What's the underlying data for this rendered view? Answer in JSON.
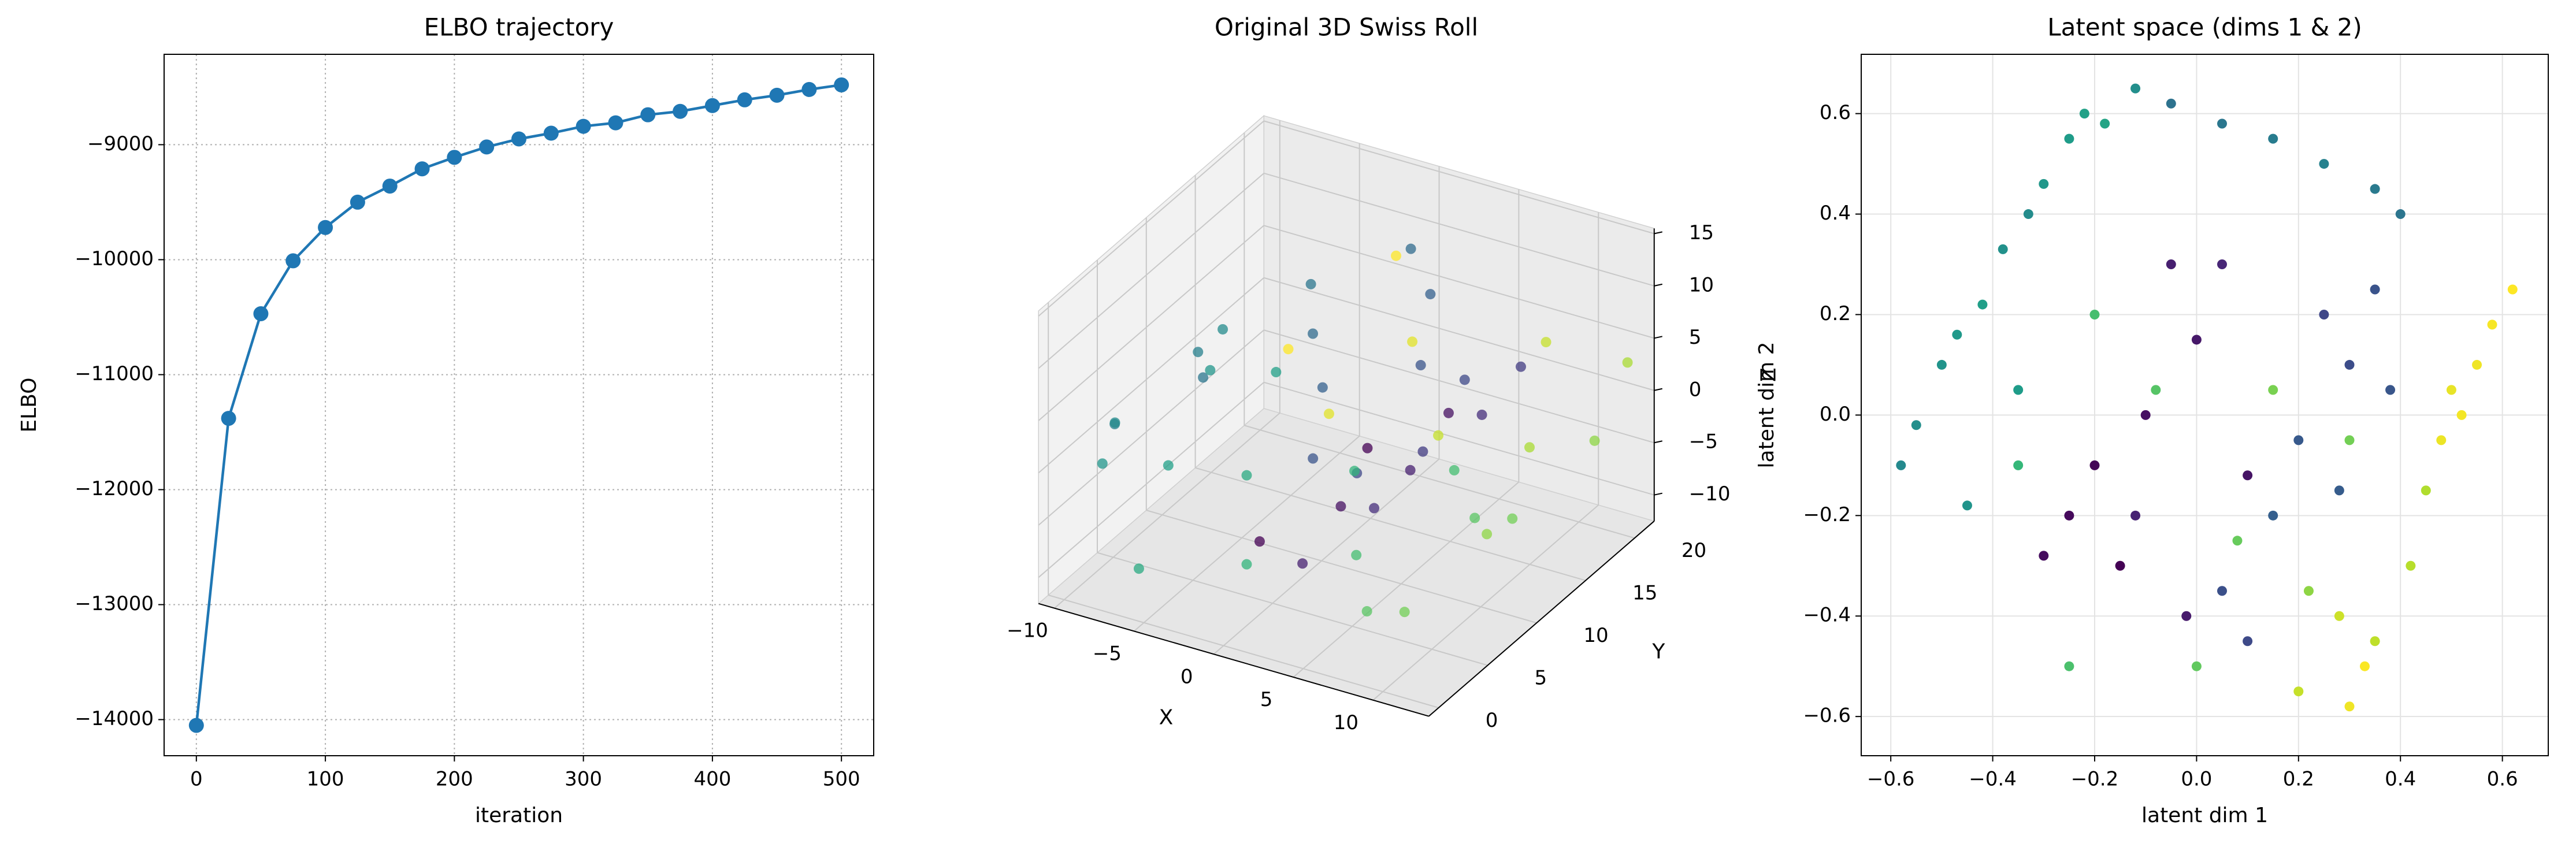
{
  "chart_data": [
    {
      "type": "line",
      "title": "ELBO trajectory",
      "xlabel": "iteration",
      "ylabel": "ELBO",
      "x": [
        0,
        25,
        50,
        75,
        100,
        125,
        150,
        175,
        200,
        225,
        250,
        275,
        300,
        325,
        350,
        375,
        400,
        425,
        450,
        475,
        500
      ],
      "values": [
        -14050,
        -11380,
        -10470,
        -10010,
        -9720,
        -9500,
        -9360,
        -9210,
        -9110,
        -9020,
        -8950,
        -8900,
        -8840,
        -8810,
        -8740,
        -8710,
        -8660,
        -8610,
        -8570,
        -8520,
        -8480
      ],
      "color": "#1f77b4",
      "xlim": [
        -25,
        525
      ],
      "ylim": [
        -14314,
        -8214
      ],
      "xticks": [
        0,
        100,
        200,
        300,
        400,
        500
      ],
      "yticks": [
        {
          "value": -14000,
          "label": "−14000"
        },
        {
          "value": -13000,
          "label": "−13000"
        },
        {
          "value": -12000,
          "label": "−12000"
        },
        {
          "value": -11000,
          "label": "−11000"
        },
        {
          "value": -10000,
          "label": "−10000"
        },
        {
          "value": -9000,
          "label": "−9000"
        }
      ],
      "grid": "dotted"
    },
    {
      "type": "scatter3d",
      "title": "Original 3D Swiss Roll",
      "xlabel": "X",
      "ylabel": "Y",
      "zlabel": "Z",
      "x": [
        0.42,
        0.42,
        2.44,
        2.44,
        4.34,
        4.34,
        5.76,
        5.76,
        6.36,
        6.36,
        5.91,
        5.91,
        4.38,
        4.38,
        1.91,
        1.91,
        -1.16,
        -1.16,
        -4.36,
        -4.36,
        -7.14,
        -7.14,
        -8.97,
        -8.97,
        -9.45,
        -9.45,
        -8.39,
        -8.39,
        -5.93,
        -5.93,
        -2.24,
        -2.24,
        2.18,
        2.18,
        6.54,
        6.54,
        10.13,
        10.13,
        12.22,
        12.22,
        12.44,
        12.44,
        10.4,
        10.4,
        6.31,
        6.31,
        1.91,
        1.91
      ],
      "y": [
        3,
        14,
        8,
        19,
        1,
        12,
        6,
        17,
        10,
        20,
        4,
        15,
        2,
        13,
        7,
        18,
        11,
        21,
        5,
        16,
        9,
        0.5,
        3.5,
        14.5,
        3,
        14,
        8,
        19,
        1,
        12,
        6,
        17,
        10,
        20,
        4,
        15,
        2,
        13,
        7,
        18,
        11,
        21,
        5,
        16,
        9,
        0.5,
        3.5,
        14.5
      ],
      "z": [
        -4.78,
        -4.78,
        -4.59,
        -4.59,
        -3.54,
        -3.54,
        -1.68,
        -1.68,
        0.75,
        0.75,
        3.36,
        3.36,
        5.71,
        5.71,
        7.36,
        7.36,
        7.91,
        7.91,
        7.18,
        7.18,
        5.15,
        5.15,
        2.05,
        2.05,
        -1.67,
        -1.67,
        -5.44,
        -5.44,
        -8.55,
        -8.55,
        -10.57,
        -10.57,
        -10.99,
        -10.99,
        -9.58,
        -9.58,
        -6.44,
        -6.44,
        -2.13,
        -2.13,
        3.02,
        3.02,
        8.13,
        8.13,
        12.05,
        12.05,
        13.87,
        13.87
      ],
      "c": [
        4.8,
        4.8,
        5.2,
        5.2,
        5.6,
        5.6,
        6.0,
        6.0,
        6.4,
        6.4,
        6.8,
        6.8,
        7.2,
        7.2,
        7.6,
        7.6,
        8.0,
        8.0,
        8.4,
        8.4,
        8.8,
        8.8,
        9.2,
        9.2,
        9.6,
        9.6,
        10.0,
        10.0,
        10.4,
        10.4,
        10.8,
        10.8,
        11.2,
        11.2,
        11.6,
        11.6,
        12.0,
        12.0,
        12.4,
        12.4,
        12.8,
        12.8,
        13.2,
        13.2,
        13.6,
        13.6,
        14.0,
        14.0
      ],
      "colormap": [
        "#440154",
        "#482878",
        "#3e4989",
        "#31688e",
        "#26828e",
        "#1f9e89",
        "#35b779",
        "#6ece58",
        "#b5de2b",
        "#fde725"
      ],
      "xlim": [
        -11,
        13.5
      ],
      "ylim": [
        -1,
        22
      ],
      "zlim": [
        -12.5,
        15.5
      ],
      "xticks": [
        {
          "value": -10,
          "label": "−10"
        },
        {
          "value": -5,
          "label": "−5"
        },
        0,
        5,
        10
      ],
      "yticks": [
        0,
        5,
        10,
        15,
        20
      ],
      "zticks": [
        {
          "value": -10,
          "label": "−10"
        },
        {
          "value": -5,
          "label": "−5"
        },
        0,
        5,
        10,
        15
      ]
    },
    {
      "type": "scatter",
      "title": "Latent space (dims 1 & 2)",
      "xlabel": "latent dim 1",
      "ylabel": "latent dim 2",
      "x": [
        -0.58,
        -0.55,
        -0.5,
        -0.47,
        -0.42,
        -0.38,
        -0.33,
        -0.3,
        -0.25,
        -0.22,
        -0.18,
        -0.12,
        -0.45,
        -0.35,
        -0.05,
        0.05,
        0.15,
        0.25,
        0.35,
        0.4,
        0.25,
        0.3,
        0.35,
        0.2,
        0.15,
        0.05,
        0.1,
        0.38,
        0.28,
        -0.15,
        -0.25,
        -0.1,
        0.0,
        -0.05,
        0.05,
        -0.2,
        -0.3,
        0.1,
        -0.02,
        -0.12,
        -0.35,
        -0.2,
        -0.08,
        0.08,
        0.15,
        0.22,
        -0.25,
        0.0,
        0.3,
        0.45,
        0.42,
        0.35,
        0.2,
        0.28,
        0.5,
        0.55,
        0.58,
        0.62,
        0.48,
        0.52,
        0.3,
        0.33
      ],
      "values": [
        -0.1,
        -0.02,
        0.1,
        0.16,
        0.22,
        0.33,
        0.4,
        0.46,
        0.55,
        0.6,
        0.58,
        0.65,
        -0.18,
        0.05,
        0.62,
        0.58,
        0.55,
        0.5,
        0.45,
        0.4,
        0.2,
        0.1,
        0.25,
        -0.05,
        -0.2,
        -0.35,
        -0.45,
        0.05,
        -0.15,
        -0.3,
        -0.2,
        0.0,
        0.15,
        0.3,
        0.3,
        -0.1,
        -0.28,
        -0.12,
        -0.4,
        -0.2,
        -0.1,
        0.2,
        0.05,
        -0.25,
        0.05,
        -0.35,
        -0.5,
        -0.5,
        -0.05,
        -0.15,
        -0.3,
        -0.45,
        -0.55,
        -0.4,
        0.05,
        0.1,
        0.18,
        0.25,
        -0.05,
        0.0,
        -0.58,
        -0.5
      ],
      "c": [
        9.2,
        9.4,
        9.6,
        9.8,
        10.0,
        9.5,
        9.3,
        9.7,
        9.9,
        10.1,
        10.2,
        9.4,
        9.6,
        9.9,
        8.3,
        8.5,
        8.7,
        8.9,
        8.6,
        8.4,
        6.8,
        7.0,
        7.2,
        7.4,
        7.6,
        7.1,
        6.9,
        7.3,
        7.5,
        4.8,
        5.0,
        5.2,
        5.4,
        5.6,
        5.8,
        4.9,
        5.1,
        5.3,
        5.5,
        5.7,
        11.0,
        11.3,
        11.6,
        11.9,
        12.2,
        12.5,
        11.4,
        11.8,
        12.1,
        13.0,
        13.1,
        13.2,
        13.3,
        13.4,
        13.8,
        13.9,
        14.0,
        14.1,
        13.85,
        13.95,
        13.9,
        14.05
      ],
      "colormap": [
        "#440154",
        "#482878",
        "#3e4989",
        "#31688e",
        "#26828e",
        "#1f9e89",
        "#35b779",
        "#6ece58",
        "#b5de2b",
        "#fde725"
      ],
      "xlim": [
        -0.658,
        0.69
      ],
      "ylim": [
        -0.678,
        0.718
      ],
      "xticks": [
        {
          "value": -0.6,
          "label": "−0.6"
        },
        {
          "value": -0.4,
          "label": "−0.4"
        },
        {
          "value": -0.2,
          "label": "−0.2"
        },
        {
          "value": 0,
          "label": "0.0"
        },
        0.2,
        0.4,
        0.6
      ],
      "yticks": [
        {
          "value": -0.6,
          "label": "−0.6"
        },
        {
          "value": -0.4,
          "label": "−0.4"
        },
        {
          "value": -0.2,
          "label": "−0.2"
        },
        {
          "value": 0,
          "label": "0.0"
        },
        0.2,
        0.4,
        0.6
      ],
      "grid": "solid"
    }
  ]
}
